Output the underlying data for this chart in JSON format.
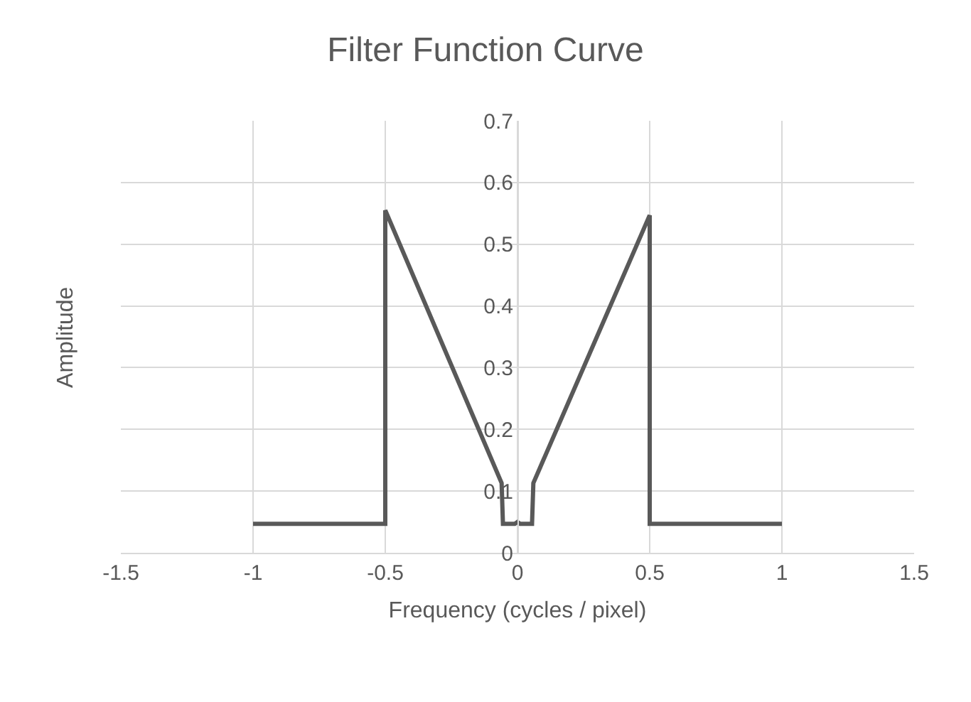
{
  "chart_data": {
    "type": "line",
    "title": "Filter Function Curve",
    "xlabel": "Frequency (cycles / pixel)",
    "ylabel": "Amplitude",
    "x": [
      -1,
      -0.5,
      -0.5,
      -0.06,
      -0.055,
      -0.01,
      0,
      0.01,
      0.055,
      0.06,
      0.5,
      0.5,
      1
    ],
    "series": [
      {
        "color": "#595959",
        "values": [
          0.047,
          0.047,
          0.555,
          0.113,
          0.047,
          0.047,
          0.05,
          0.047,
          0.047,
          0.113,
          0.547,
          0.047,
          0.047
        ]
      }
    ],
    "xlim": [
      -1.5,
      1.5
    ],
    "xticks": [
      -1.5,
      -1,
      -0.5,
      0,
      0.5,
      1,
      1.5
    ],
    "ylim": [
      0,
      0.7
    ],
    "yticks": [
      0,
      0.1,
      0.2,
      0.3,
      0.4,
      0.5,
      0.6,
      0.7
    ],
    "grid": true,
    "marker": "none",
    "line_style": "solid"
  }
}
